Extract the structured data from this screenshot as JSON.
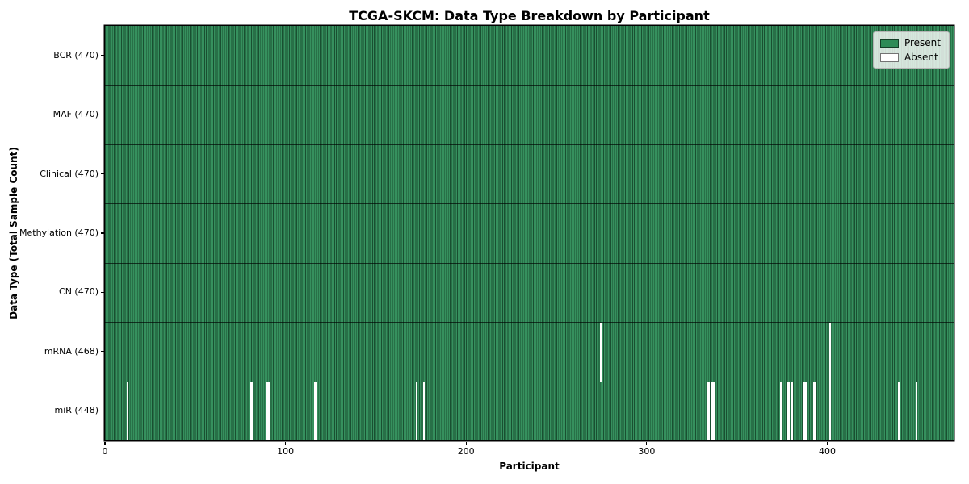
{
  "chart_data": {
    "type": "heatmap",
    "title": "TCGA-SKCM: Data Type Breakdown by Participant",
    "xlabel": "Participant",
    "ylabel": "Data Type (Total Sample Count)",
    "x_ticks": [
      0,
      100,
      200,
      300,
      400
    ],
    "x_range": [
      0,
      470
    ],
    "n_participants": 470,
    "grid": false,
    "legend_position": "upper right",
    "rows": [
      {
        "label": "BCR (470)",
        "data_type": "BCR",
        "total": 470,
        "absent_participants": []
      },
      {
        "label": "MAF (470)",
        "data_type": "MAF",
        "total": 470,
        "absent_participants": []
      },
      {
        "label": "Clinical (470)",
        "data_type": "Clinical",
        "total": 470,
        "absent_participants": []
      },
      {
        "label": "Methylation (470)",
        "data_type": "Methylation",
        "total": 470,
        "absent_participants": []
      },
      {
        "label": "CN (470)",
        "data_type": "CN",
        "total": 470,
        "absent_participants": []
      },
      {
        "label": "mRNA (468)",
        "data_type": "mRNA",
        "total": 468,
        "absent_participants": [
          274,
          401
        ]
      },
      {
        "label": "miR (448)",
        "data_type": "miR",
        "total": 448,
        "absent_participants": [
          12,
          80,
          81,
          89,
          90,
          116,
          172,
          176,
          333,
          334,
          336,
          337,
          374,
          378,
          380,
          387,
          388,
          392,
          393,
          401,
          439,
          449
        ]
      }
    ],
    "legend": [
      {
        "label": "Present",
        "color": "#2e8b57"
      },
      {
        "label": "Absent",
        "color": "#ffffff"
      }
    ],
    "colors": {
      "present": "#2e8b57",
      "absent": "#ffffff",
      "cell_edge": "#133a24",
      "row_edge": "#0d2417",
      "background": "#ffffff"
    }
  }
}
